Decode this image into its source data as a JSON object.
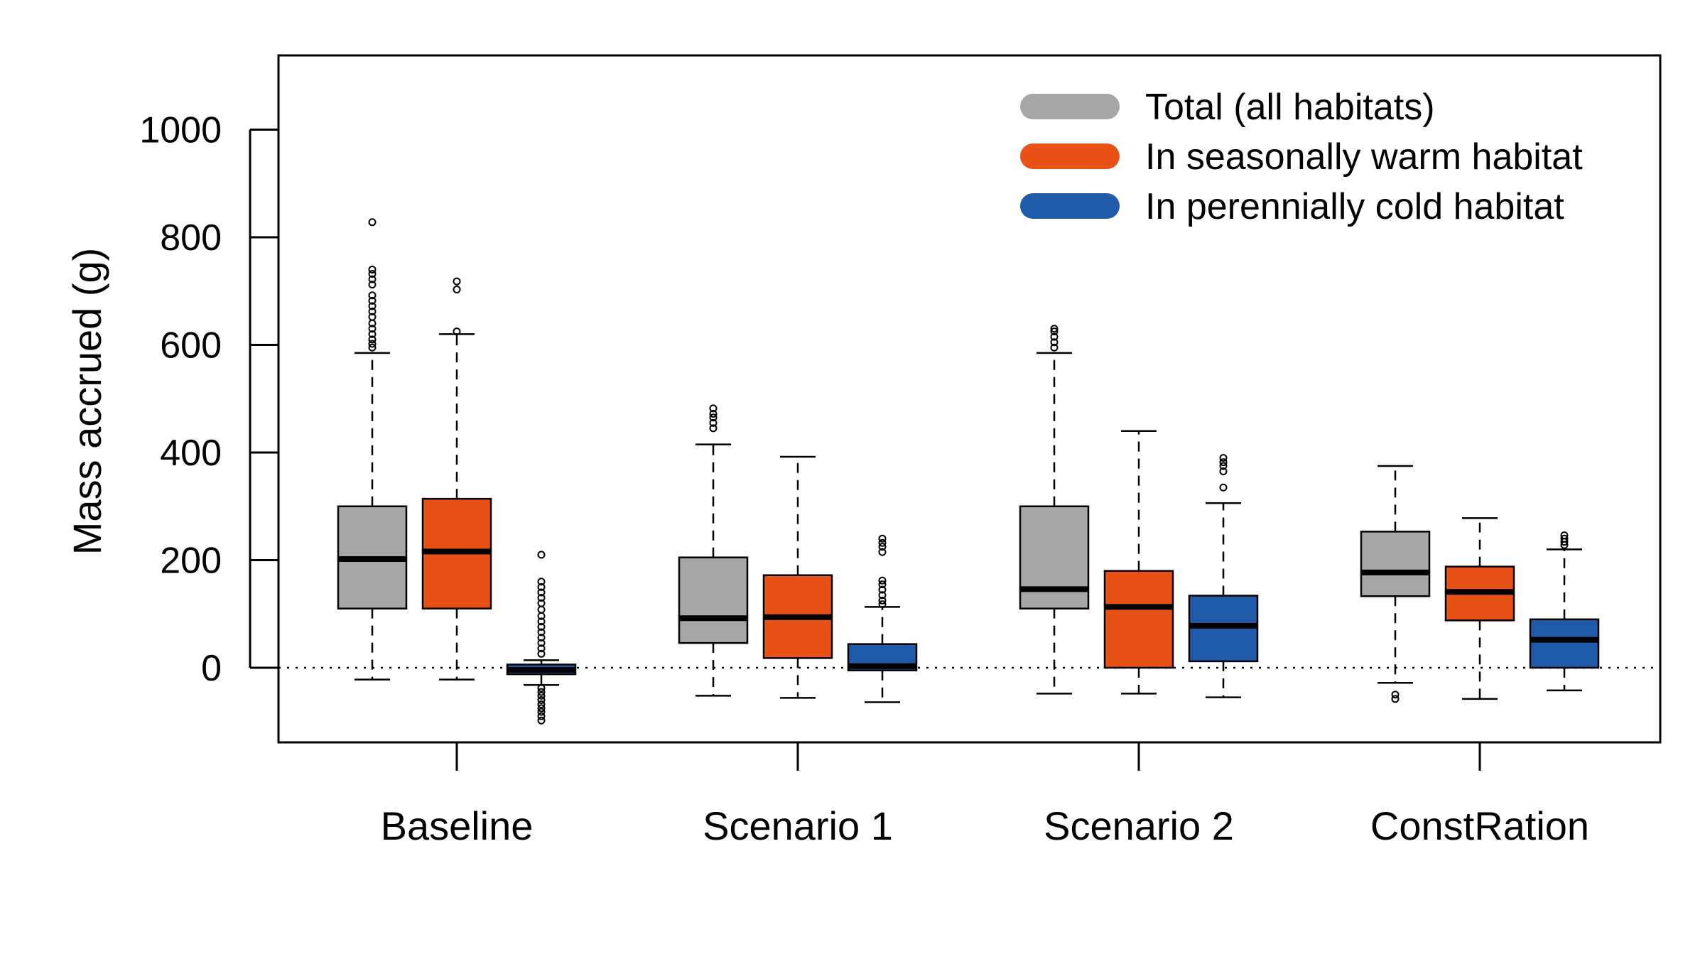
{
  "chart_data": {
    "type": "box",
    "ylabel": "Mass accrued (g)",
    "ylim": [
      -140,
      1140
    ],
    "yticks": [
      0,
      200,
      400,
      600,
      800,
      1000
    ],
    "categories": [
      "Baseline",
      "Scenario 1",
      "Scenario 2",
      "ConstRation"
    ],
    "reference_line": {
      "y": 0,
      "style": "dotted"
    },
    "legend": {
      "position": "top-right",
      "entries": [
        {
          "label": "Total (all habitats)",
          "color": "#a6a6a6"
        },
        {
          "label": "In seasonally warm habitat",
          "color": "#e85216"
        },
        {
          "label": "In perennially cold habitat",
          "color": "#1f5ba8"
        }
      ]
    },
    "series": [
      {
        "name": "Total (all habitats)",
        "color": "#a6a6a6",
        "boxes": [
          {
            "whisker_low": -22,
            "q1": 110,
            "median": 202,
            "q3": 300,
            "whisker_high": 585,
            "outliers": [
              595,
              602,
              610,
              620,
              630,
              640,
              652,
              662,
              672,
              682,
              692,
              712,
              722,
              732,
              740,
              828
            ]
          },
          {
            "whisker_low": -52,
            "q1": 46,
            "median": 92,
            "q3": 205,
            "whisker_high": 415,
            "outliers": [
              445,
              455,
              465,
              472,
              482
            ]
          },
          {
            "whisker_low": -48,
            "q1": 110,
            "median": 146,
            "q3": 300,
            "whisker_high": 585,
            "outliers": [
              595,
              605,
              615,
              625,
              630
            ]
          },
          {
            "whisker_low": -28,
            "q1": 133,
            "median": 177,
            "q3": 253,
            "whisker_high": 375,
            "outliers": [
              -50,
              -58
            ]
          }
        ]
      },
      {
        "name": "In seasonally warm habitat",
        "color": "#e85216",
        "boxes": [
          {
            "whisker_low": -22,
            "q1": 110,
            "median": 216,
            "q3": 314,
            "whisker_high": 620,
            "outliers": [
              625,
              703,
              718
            ]
          },
          {
            "whisker_low": -56,
            "q1": 18,
            "median": 94,
            "q3": 172,
            "whisker_high": 392,
            "outliers": []
          },
          {
            "whisker_low": -48,
            "q1": 0,
            "median": 113,
            "q3": 180,
            "whisker_high": 440,
            "outliers": []
          },
          {
            "whisker_low": -58,
            "q1": 88,
            "median": 141,
            "q3": 188,
            "whisker_high": 278,
            "outliers": []
          }
        ]
      },
      {
        "name": "In perennially cold habitat",
        "color": "#1f5ba8",
        "boxes": [
          {
            "whisker_low": -32,
            "q1": -12,
            "median": -4,
            "q3": 6,
            "whisker_high": 14,
            "outliers": [
              -38,
              -45,
              -52,
              -60,
              -68,
              -75,
              -82,
              -90,
              -98,
              26,
              36,
              46,
              56,
              66,
              76,
              86,
              96,
              108,
              120,
              130,
              140,
              150,
              160,
              210
            ]
          },
          {
            "whisker_low": -64,
            "q1": -5,
            "median": 3,
            "q3": 44,
            "whisker_high": 113,
            "outliers": [
              118,
              125,
              135,
              145,
              155,
              162,
              215,
              225,
              232,
              240
            ]
          },
          {
            "whisker_low": -55,
            "q1": 12,
            "median": 78,
            "q3": 134,
            "whisker_high": 306,
            "outliers": [
              335,
              365,
              375,
              382,
              390
            ]
          },
          {
            "whisker_low": -42,
            "q1": 0,
            "median": 52,
            "q3": 90,
            "whisker_high": 220,
            "outliers": [
              228,
              234,
              240,
              246
            ]
          }
        ]
      }
    ]
  }
}
